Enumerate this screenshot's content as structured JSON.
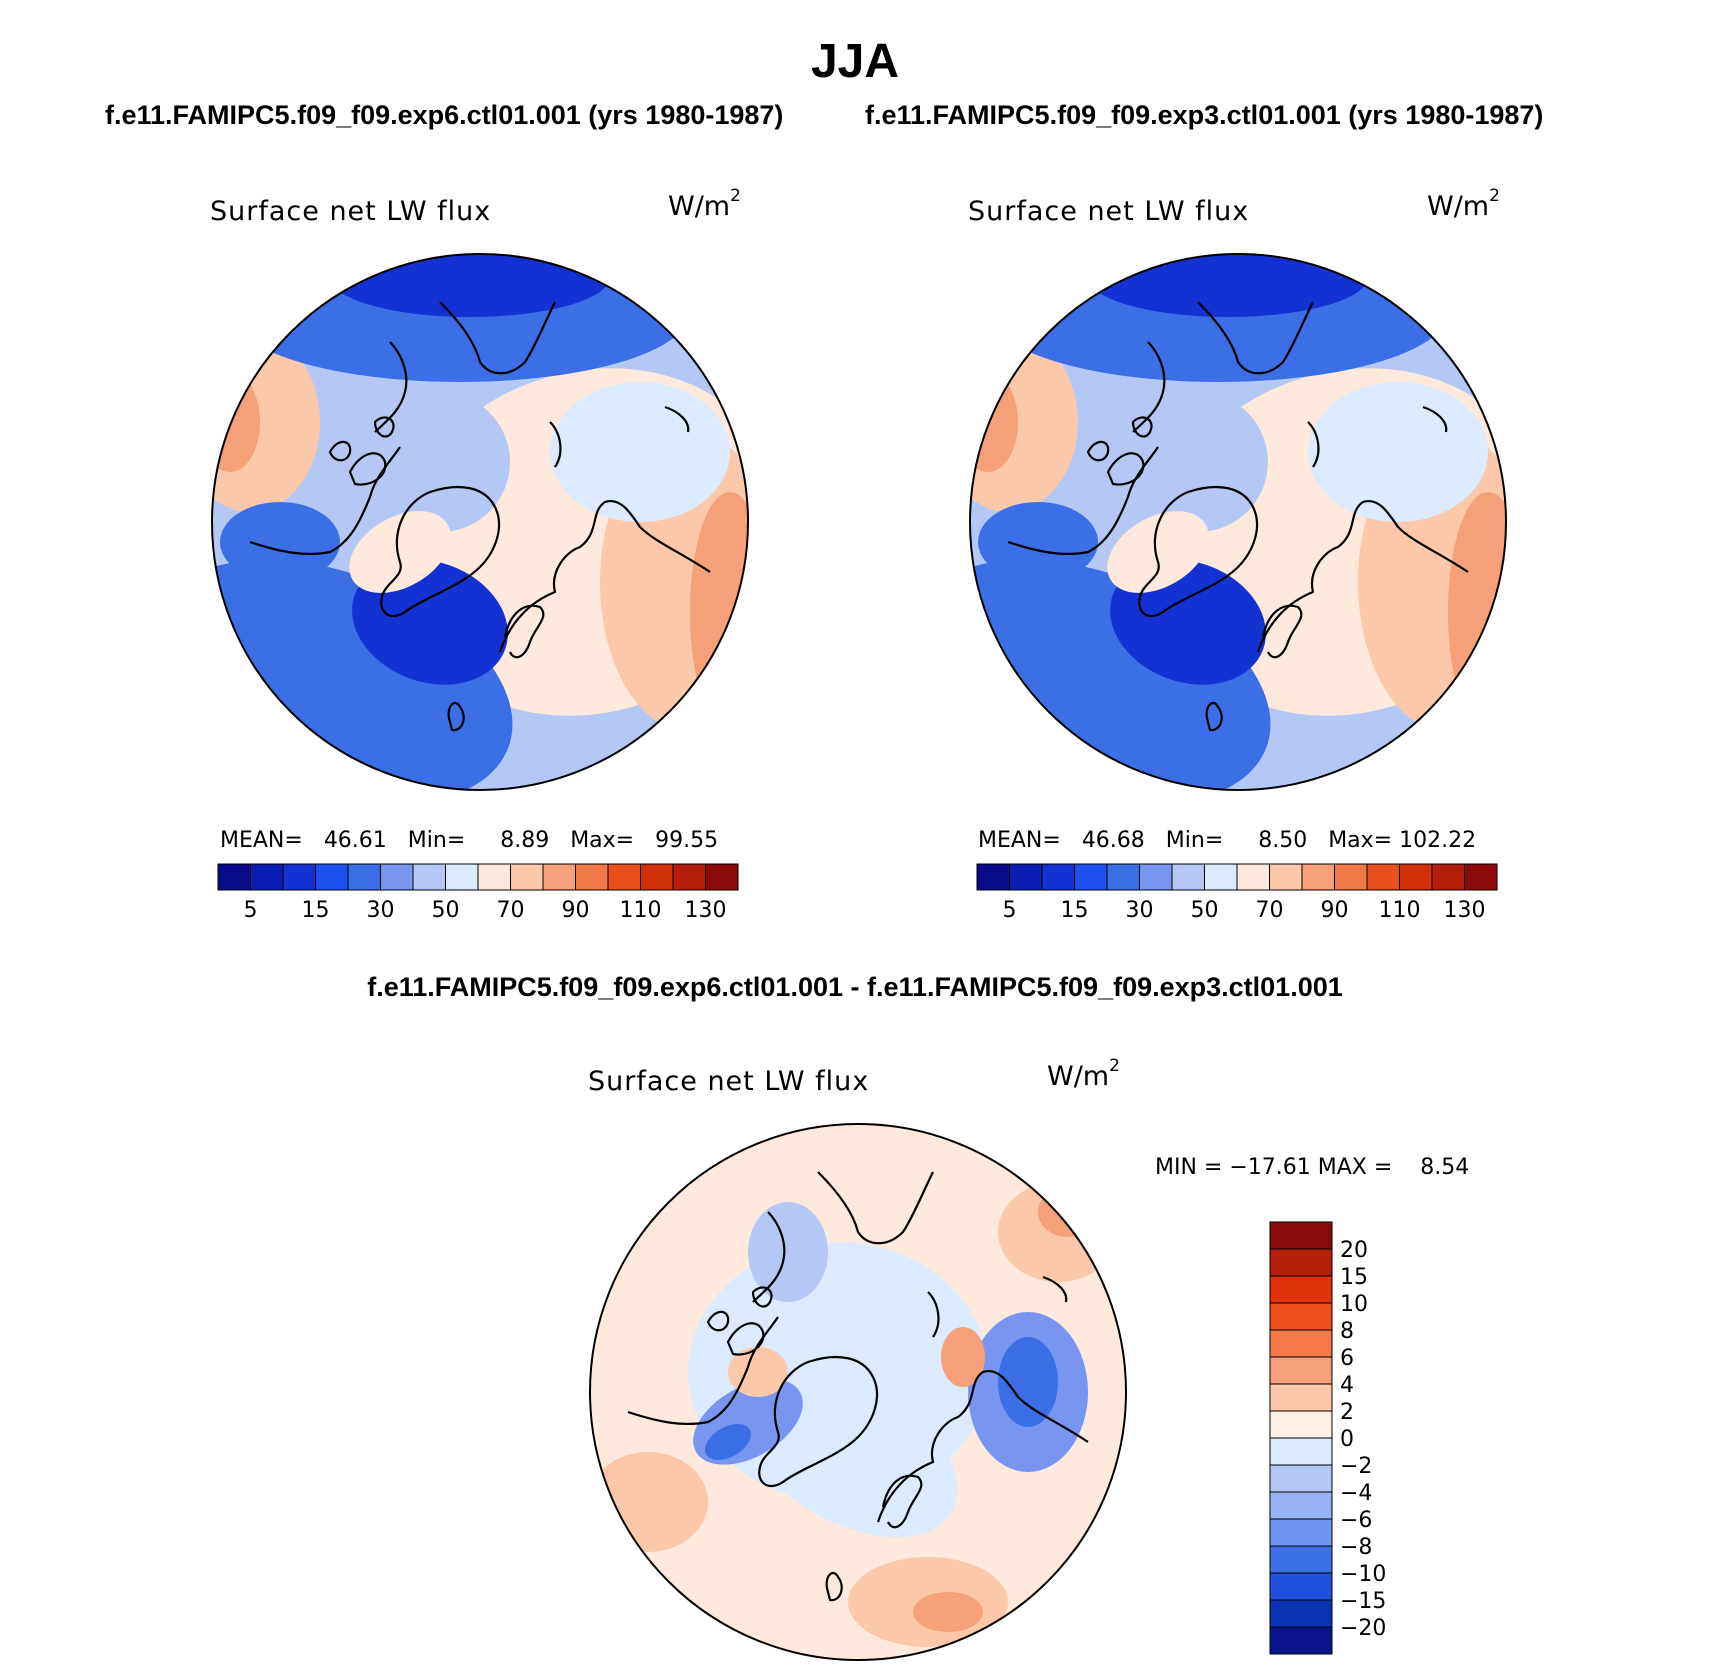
{
  "header": {
    "season": "JJA",
    "case1_title": "f.e11.FAMIPC5.f09_f09.exp6.ctl01.001 (yrs 1980-1987)",
    "case2_title": "f.e11.FAMIPC5.f09_f09.exp3.ctl01.001 (yrs 1980-1987)",
    "diff_title": "f.e11.FAMIPC5.f09_f09.exp6.ctl01.001 - f.e11.FAMIPC5.f09_f09.exp3.ctl01.001"
  },
  "panels": [
    {
      "id": "case1",
      "variable": "Surface net LW flux",
      "units_base": "W/m",
      "units_exp": "2",
      "stats": {
        "mean_label": "MEAN=",
        "mean": "46.61",
        "min_label": "Min=",
        "min": "8.89",
        "max_label": "Max=",
        "max": "99.55"
      }
    },
    {
      "id": "case2",
      "variable": "Surface net LW flux",
      "units_base": "W/m",
      "units_exp": "2",
      "stats": {
        "mean_label": "MEAN=",
        "mean": "46.68",
        "min_label": "Min=",
        "min": "8.50",
        "max_label": "Max=",
        "max": "102.22"
      }
    },
    {
      "id": "diff",
      "variable": "Surface net LW flux",
      "units_base": "W/m",
      "units_exp": "2",
      "stats": {
        "text": "MIN = −17.61 MAX =    8.54"
      }
    }
  ],
  "colorbar_main": {
    "colors": [
      "#0a0a8c",
      "#0a1eb4",
      "#1432d2",
      "#1e50f0",
      "#3c6ee6",
      "#7896f0",
      "#b4c8f5",
      "#dceaff",
      "#ffe9dc",
      "#fcc8aa",
      "#f5a078",
      "#f07846",
      "#e8501e",
      "#d2320a",
      "#b41e0a",
      "#8c0a0a"
    ],
    "tick_labels": [
      "5",
      "15",
      "30",
      "50",
      "70",
      "90",
      "110",
      "130"
    ]
  },
  "colorbar_diff": {
    "colors": [
      "#8c0a0a",
      "#b41e0a",
      "#e0320a",
      "#f05020",
      "#f57846",
      "#f5a078",
      "#fcc8aa",
      "#fff0e6",
      "#dceaff",
      "#b4c8f5",
      "#96b4f5",
      "#6e96f0",
      "#3c6ee6",
      "#1e50dc",
      "#0a32b4",
      "#0a148c"
    ],
    "tick_labels": [
      "20",
      "15",
      "10",
      "8",
      "6",
      "4",
      "2",
      "0",
      "−2",
      "−4",
      "−6",
      "−8",
      "−10",
      "−15",
      "−20"
    ]
  },
  "map_colors": {
    "blue_dark": "#1432d2",
    "blue": "#3c6ee6",
    "blue_mid": "#7896f0",
    "blue_light": "#b4c8f5",
    "blue_pale": "#dceaff",
    "orange_pale": "#ffe9dc",
    "orange_light": "#fcc8aa",
    "orange": "#f5a078",
    "orange_dark": "#f07846"
  }
}
